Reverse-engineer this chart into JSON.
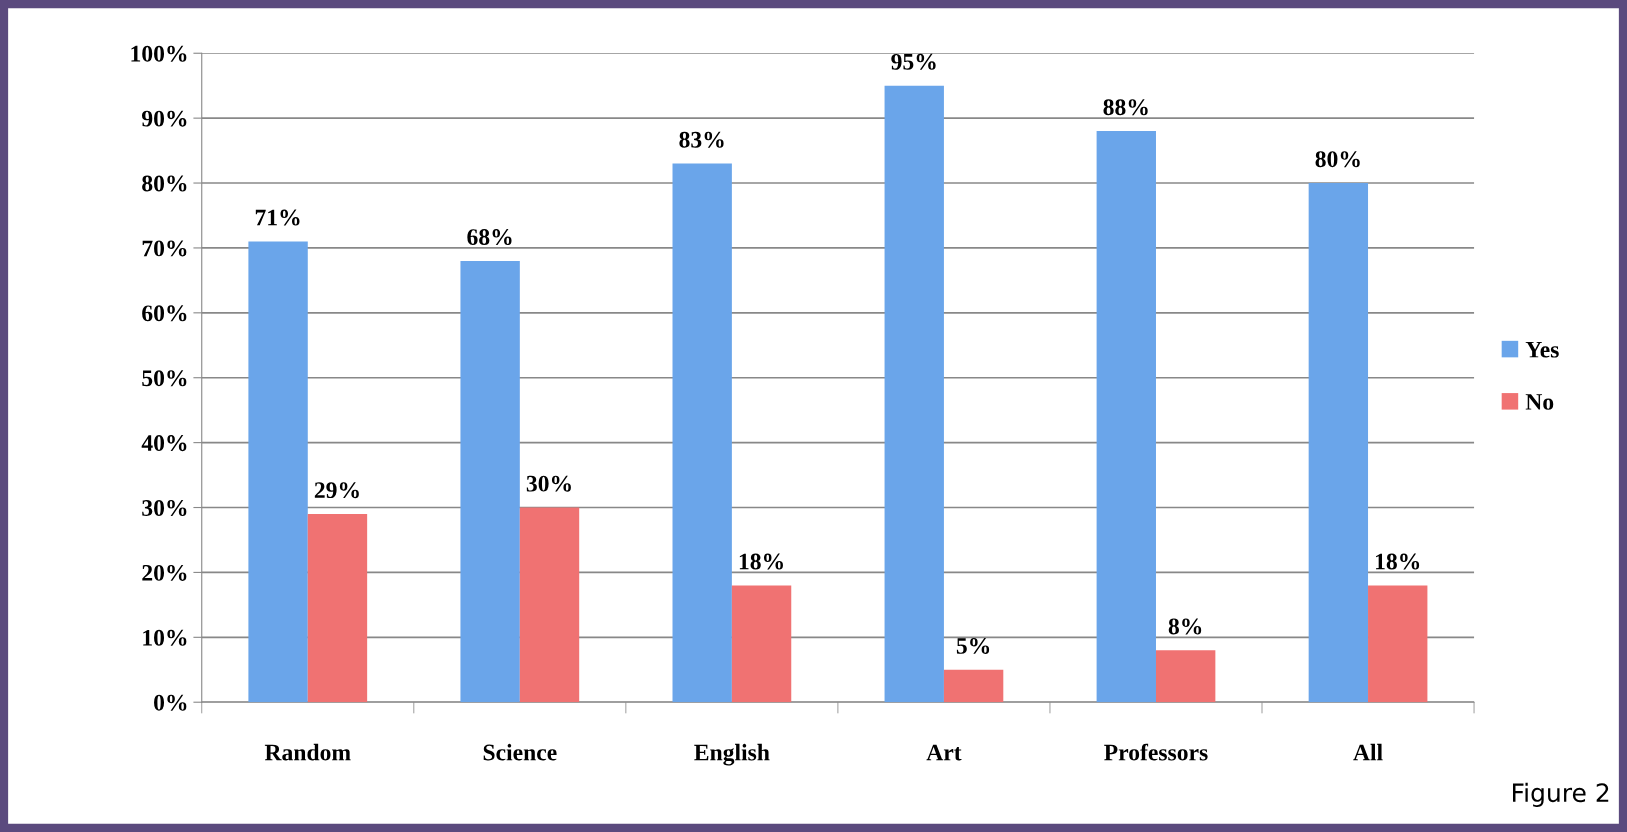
{
  "chart_data": {
    "type": "bar",
    "categories": [
      "Random",
      "Science",
      "English",
      "Art",
      "Professors",
      "All"
    ],
    "series": [
      {
        "name": "Yes",
        "color": "#6aa5ea",
        "values": [
          71,
          68,
          83,
          95,
          88,
          80
        ],
        "value_labels": [
          "71%",
          "68%",
          "83%",
          "95%",
          "88%",
          "80%"
        ]
      },
      {
        "name": "No",
        "color": "#f07272",
        "values": [
          29,
          30,
          18,
          5,
          8,
          18
        ],
        "value_labels": [
          "29%",
          "30%",
          "18%",
          "5%",
          "8%",
          "18%"
        ]
      }
    ],
    "ylim": [
      0,
      100
    ],
    "yticks": [
      {
        "value": 0,
        "label": "0%"
      },
      {
        "value": 10,
        "label": "10%"
      },
      {
        "value": 20,
        "label": "20%"
      },
      {
        "value": 30,
        "label": "30%"
      },
      {
        "value": 40,
        "label": "40%"
      },
      {
        "value": 50,
        "label": "50%"
      },
      {
        "value": 60,
        "label": "60%"
      },
      {
        "value": 70,
        "label": "70%"
      },
      {
        "value": 80,
        "label": "80%"
      },
      {
        "value": 90,
        "label": "90%"
      },
      {
        "value": 100,
        "label": "100%"
      }
    ],
    "grid": "y",
    "legend": "right",
    "annotations": [
      "Figure 2"
    ]
  }
}
